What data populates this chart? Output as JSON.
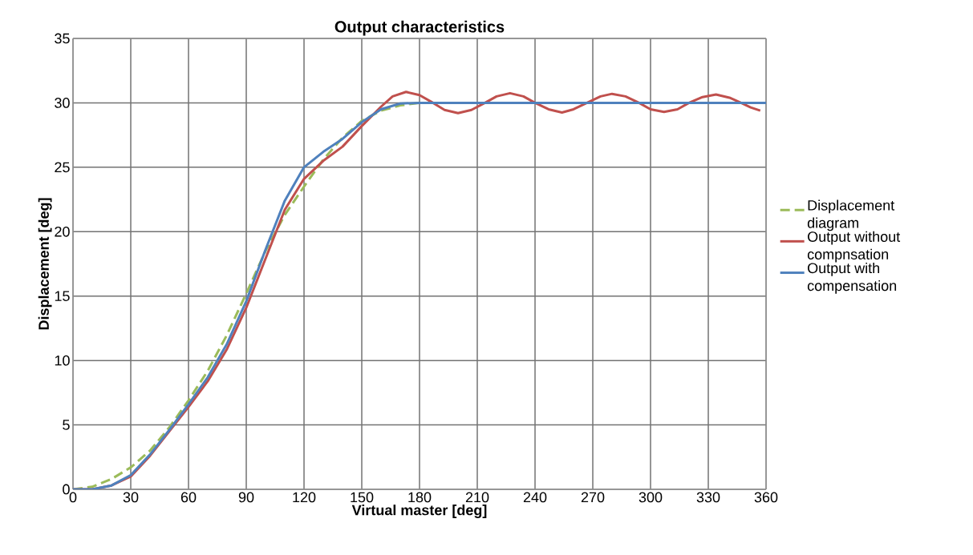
{
  "chart_data": {
    "type": "line",
    "title": "Output characteristics",
    "xlabel": "Virtual master [deg]",
    "ylabel": "Displacement [deg]",
    "xlim": [
      0,
      360
    ],
    "ylim": [
      0,
      35
    ],
    "xticks": [
      0,
      30,
      60,
      90,
      120,
      150,
      180,
      210,
      240,
      270,
      300,
      330,
      360
    ],
    "yticks": [
      0,
      5,
      10,
      15,
      20,
      25,
      30,
      35
    ],
    "grid": true,
    "legend": "right",
    "marker": "none",
    "series": [
      {
        "name": "Displacement diagram",
        "color": "#9bbb59",
        "line_style": "dashed",
        "x": [
          0,
          10,
          20,
          30,
          40,
          50,
          60,
          70,
          80,
          90,
          100,
          110,
          120,
          130,
          140,
          150,
          160,
          170,
          180,
          360
        ],
        "values": [
          0,
          0.2,
          0.8,
          1.7,
          3,
          4.8,
          6.9,
          9.2,
          12,
          15.2,
          18.5,
          21.3,
          23.5,
          25.6,
          27.3,
          28.6,
          29.4,
          29.8,
          30,
          30
        ]
      },
      {
        "name": "Output without compnsation",
        "color": "#c0504d",
        "line_style": "solid",
        "x": [
          0,
          10,
          20,
          30,
          40,
          50,
          60,
          70,
          80,
          90,
          100,
          110,
          120,
          130,
          140,
          150,
          160,
          166,
          173,
          180,
          187,
          193,
          200,
          207,
          214,
          220,
          227,
          234,
          240,
          247,
          254,
          260,
          267,
          274,
          280,
          287,
          294,
          300,
          307,
          314,
          320,
          327,
          334,
          341,
          347,
          352,
          357
        ],
        "values": [
          0,
          0,
          0.3,
          1.0,
          2.6,
          4.5,
          6.4,
          8.4,
          10.9,
          14.1,
          17.9,
          21.7,
          24.1,
          25.5,
          26.6,
          28.2,
          29.7,
          30.5,
          30.85,
          30.6,
          30.0,
          29.45,
          29.2,
          29.45,
          30.0,
          30.5,
          30.75,
          30.5,
          30.0,
          29.5,
          29.25,
          29.5,
          30.0,
          30.5,
          30.7,
          30.5,
          30.0,
          29.5,
          29.3,
          29.5,
          30.0,
          30.45,
          30.65,
          30.4,
          30.0,
          29.65,
          29.4
        ]
      },
      {
        "name": "Output with compensation",
        "color": "#4f81bd",
        "line_style": "solid",
        "x": [
          0,
          10,
          20,
          30,
          40,
          50,
          60,
          70,
          80,
          90,
          100,
          110,
          120,
          130,
          140,
          150,
          160,
          170,
          180,
          360
        ],
        "values": [
          0,
          0,
          0.3,
          1.1,
          2.7,
          4.6,
          6.6,
          8.7,
          11.3,
          14.6,
          18.6,
          22.4,
          25,
          26.2,
          27.2,
          28.5,
          29.5,
          29.95,
          30,
          30
        ]
      }
    ]
  }
}
